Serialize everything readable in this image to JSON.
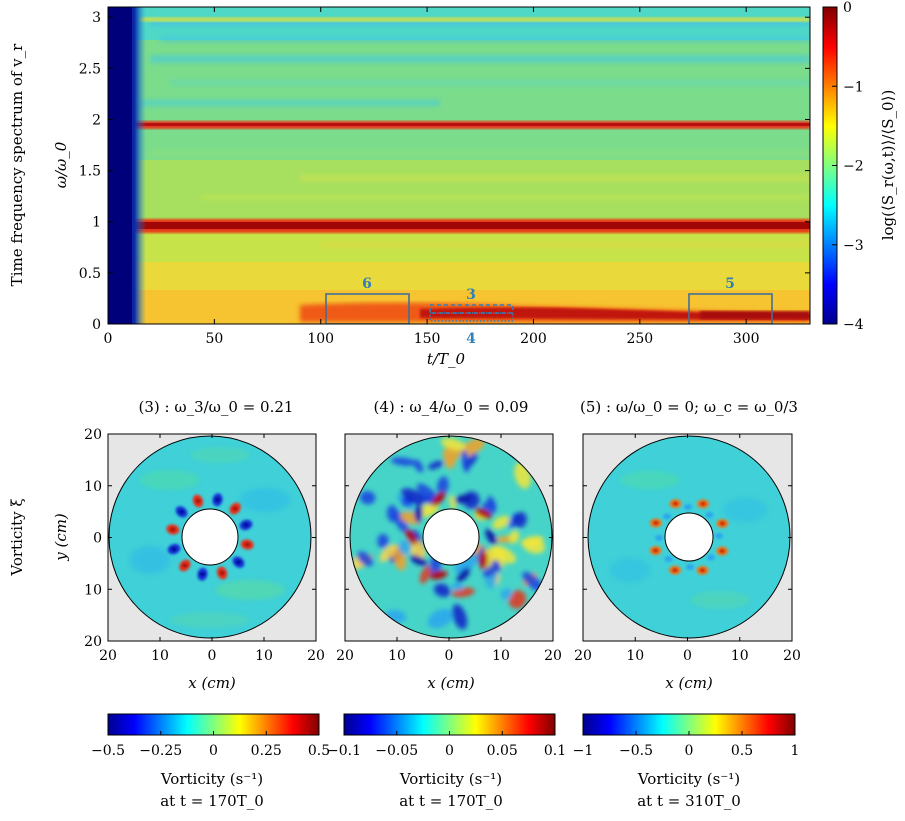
{
  "top_panel": {
    "ylabel_outer": "Time frequency spectrum of v_r",
    "ylabel": "ω/ω_0",
    "xlabel": "t/T_0",
    "colorbar_label": "log(⟨S_r(ω,t)⟩/⟨S_0⟩)",
    "x_ticks": [
      "0",
      "50",
      "100",
      "150",
      "200",
      "250",
      "300"
    ],
    "y_ticks": [
      "0",
      "0.5",
      "1",
      "1.5",
      "2",
      "2.5",
      "3"
    ],
    "colorbar_ticks": [
      "0",
      "−1",
      "−2",
      "−3",
      "−4"
    ],
    "box_labels": [
      "6",
      "3",
      "4",
      "5"
    ]
  },
  "bottom_panels": {
    "row_label": "Vorticity ξ",
    "ylabel": "y (cm)",
    "panels": [
      {
        "title": "(3) :  ω_3/ω_0 = 0.21",
        "xlabel": "x (cm)",
        "cbar_ticks": [
          "−0.5",
          "−0.25",
          "0",
          "0.25",
          "0.5"
        ],
        "cbar_label1": "Vorticity (s⁻¹)",
        "cbar_label2": "at t = 170T_0"
      },
      {
        "title": "(4) :  ω_4/ω_0 = 0.09",
        "xlabel": "x (cm)",
        "cbar_ticks": [
          "−0.1",
          "−0.05",
          "0",
          "0.05",
          "0.1"
        ],
        "cbar_label1": "Vorticity (s⁻¹)",
        "cbar_label2": "at t = 170T_0"
      },
      {
        "title": "(5) :  ω/ω_0 = 0;  ω_c = ω_0/3",
        "xlabel": "x (cm)",
        "cbar_ticks": [
          "−1",
          "−0.5",
          "0",
          "0.5",
          "1"
        ],
        "cbar_label1": "Vorticity (s⁻¹)",
        "cbar_label2": "at t = 310T_0"
      }
    ],
    "x_ticks": [
      "20",
      "10",
      "0",
      "10",
      "20"
    ],
    "y_ticks": [
      "20",
      "10",
      "0",
      "10",
      "20"
    ]
  },
  "chart_data": [
    {
      "type": "heatmap",
      "title": "",
      "xlabel": "t/T_0",
      "ylabel": "ω/ω_0",
      "xlim": [
        0,
        330
      ],
      "ylim": [
        0,
        3.1
      ],
      "colorbar_range": [
        -4,
        0
      ],
      "colorbar_label": "log(⟨S_r(ω,t)⟩/⟨S_0⟩)",
      "bands": [
        {
          "omega": 0.95,
          "level": -0.2,
          "note": "strong band"
        },
        {
          "omega": 1.97,
          "level": -0.5,
          "note": "strong band"
        },
        {
          "omega": 2.97,
          "level": -2.5,
          "note": "weak band"
        },
        {
          "omega": 0.1,
          "level": -0.7,
          "note": "low-frequency band, t > 100"
        }
      ],
      "low_region": {
        "t_range": [
          0,
          12
        ],
        "level": -4
      },
      "boxes": [
        {
          "label": "6",
          "t": [
            105,
            145
          ],
          "omega": [
            0.0,
            0.28
          ],
          "style": "solid"
        },
        {
          "label": "3",
          "t": [
            155,
            195
          ],
          "omega": [
            0.16,
            0.22
          ],
          "style": "dashed"
        },
        {
          "label": "4",
          "t": [
            155,
            195
          ],
          "omega": [
            0.04,
            0.1
          ],
          "style": "dotted"
        },
        {
          "label": "5",
          "t": [
            277,
            316
          ],
          "omega": [
            0.0,
            0.28
          ],
          "style": "solid"
        }
      ]
    },
    {
      "type": "heatmap",
      "title": "(3) :  ω_3/ω_0 = 0.21",
      "xlim": [
        -20,
        20
      ],
      "ylim": [
        -20,
        20
      ],
      "colorbar_range": [
        -0.5,
        0.5
      ],
      "structure": "ring of 12 alternating vortices near inner cylinder"
    },
    {
      "type": "heatmap",
      "title": "(4) :  ω_4/ω_0 = 0.09",
      "xlim": [
        -20,
        20
      ],
      "ylim": [
        -20,
        20
      ],
      "colorbar_range": [
        -0.1,
        0.1
      ],
      "structure": "large-scale turbulent vortices filling disk"
    },
    {
      "type": "heatmap",
      "title": "(5) :  ω/ω_0 = 0;  ω_c = ω_0/3",
      "xlim": [
        -20,
        20
      ],
      "ylim": [
        -20,
        20
      ],
      "colorbar_range": [
        -1,
        1
      ],
      "structure": "ring of 8 positive vortices near inner cylinder"
    }
  ]
}
